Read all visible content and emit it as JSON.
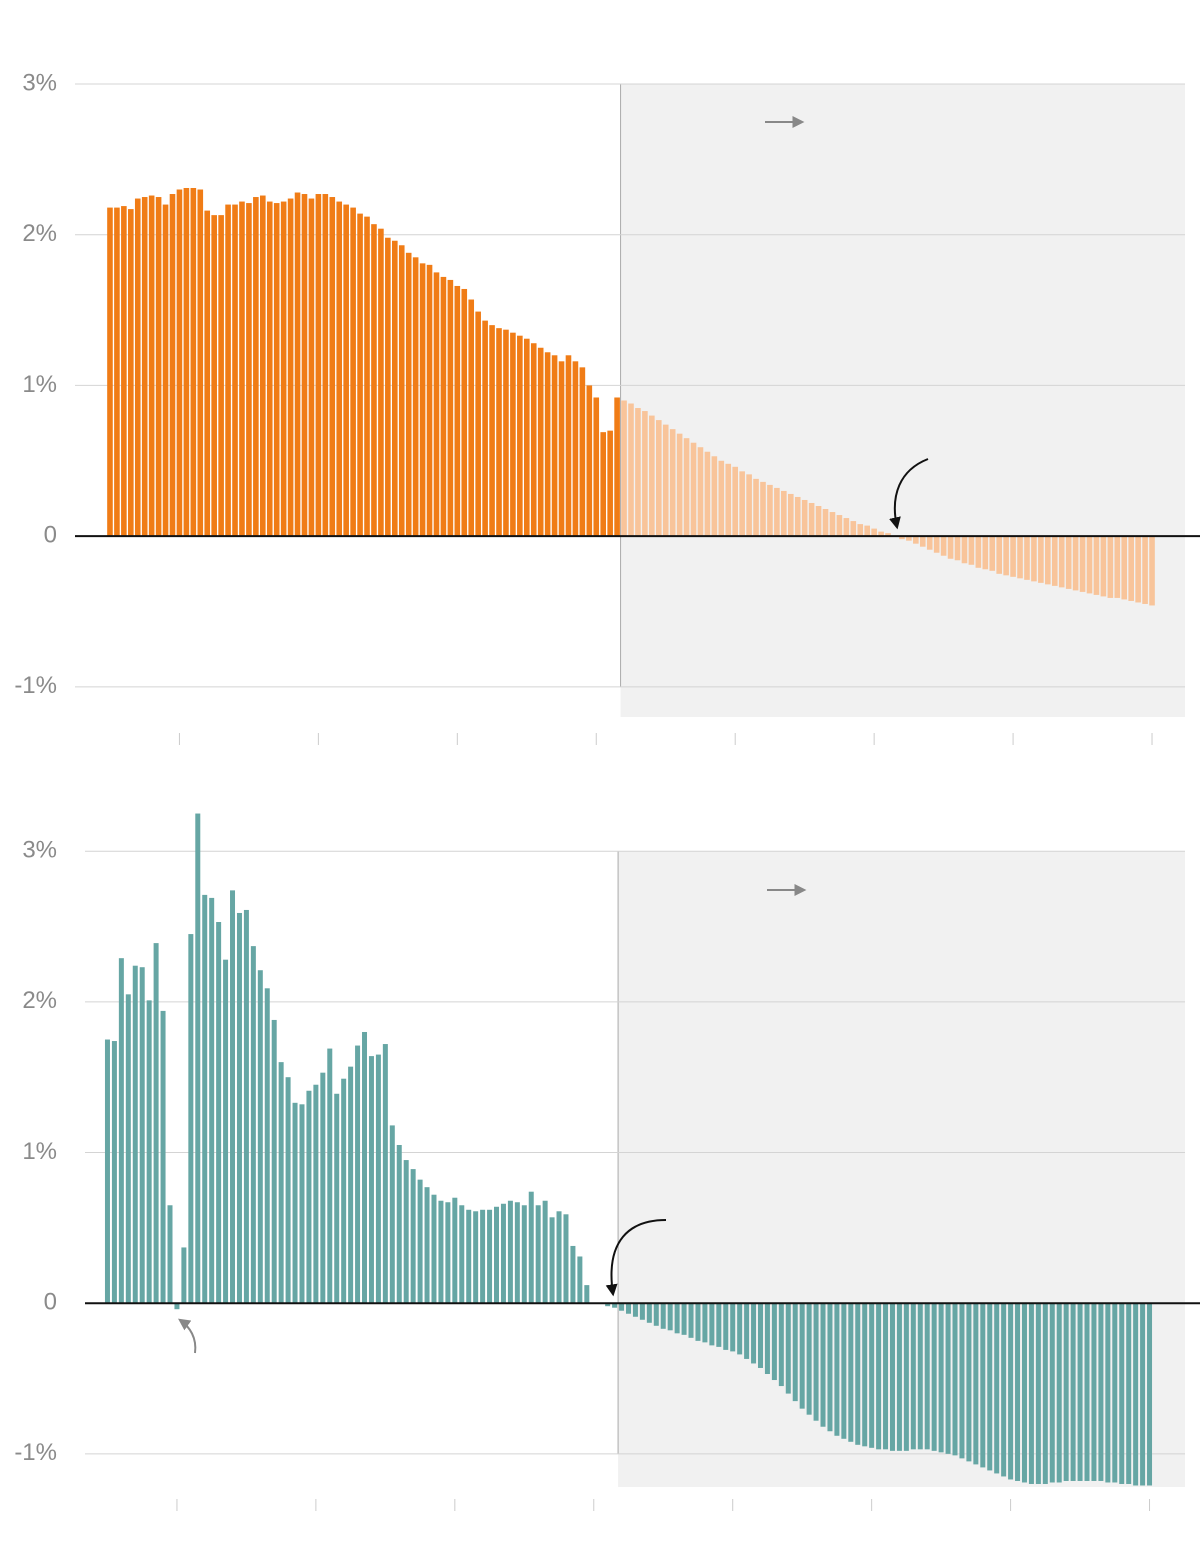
{
  "chart_data": [
    {
      "type": "bar",
      "color": "#f07c16",
      "projection_color": "#f8c49a",
      "projection_start": 2024,
      "grid": true,
      "xlim": [
        1949.5,
        2100.5
      ],
      "xticks": [
        1960,
        1980,
        2000,
        2020,
        2040,
        2060,
        2080,
        2100
      ],
      "ylim": [
        -1.2,
        3
      ],
      "yticks": [
        {
          "value": 3,
          "label": "3%"
        },
        {
          "value": 2,
          "label": "2%"
        },
        {
          "value": 1,
          "label": "1%"
        },
        0,
        {
          "value": -1,
          "label": "-1%"
        }
      ],
      "x": [
        1950,
        1951,
        1952,
        1953,
        1954,
        1955,
        1956,
        1957,
        1958,
        1959,
        1960,
        1961,
        1962,
        1963,
        1964,
        1965,
        1966,
        1967,
        1968,
        1969,
        1970,
        1971,
        1972,
        1973,
        1974,
        1975,
        1976,
        1977,
        1978,
        1979,
        1980,
        1981,
        1982,
        1983,
        1984,
        1985,
        1986,
        1987,
        1988,
        1989,
        1990,
        1991,
        1992,
        1993,
        1994,
        1995,
        1996,
        1997,
        1998,
        1999,
        2000,
        2001,
        2002,
        2003,
        2004,
        2005,
        2006,
        2007,
        2008,
        2009,
        2010,
        2011,
        2012,
        2013,
        2014,
        2015,
        2016,
        2017,
        2018,
        2019,
        2020,
        2021,
        2022,
        2023,
        2024,
        2025,
        2026,
        2027,
        2028,
        2029,
        2030,
        2031,
        2032,
        2033,
        2034,
        2035,
        2036,
        2037,
        2038,
        2039,
        2040,
        2041,
        2042,
        2043,
        2044,
        2045,
        2046,
        2047,
        2048,
        2049,
        2050,
        2051,
        2052,
        2053,
        2054,
        2055,
        2056,
        2057,
        2058,
        2059,
        2060,
        2061,
        2062,
        2063,
        2064,
        2065,
        2066,
        2067,
        2068,
        2069,
        2070,
        2071,
        2072,
        2073,
        2074,
        2075,
        2076,
        2077,
        2078,
        2079,
        2080,
        2081,
        2082,
        2083,
        2084,
        2085,
        2086,
        2087,
        2088,
        2089,
        2090,
        2091,
        2092,
        2093,
        2094,
        2095,
        2096,
        2097,
        2098,
        2099,
        2100
      ],
      "values": [
        2.18,
        2.18,
        2.19,
        2.17,
        2.24,
        2.25,
        2.26,
        2.25,
        2.2,
        2.27,
        2.3,
        2.31,
        2.31,
        2.3,
        2.16,
        2.13,
        2.13,
        2.2,
        2.2,
        2.22,
        2.21,
        2.25,
        2.26,
        2.22,
        2.21,
        2.22,
        2.24,
        2.28,
        2.27,
        2.24,
        2.27,
        2.27,
        2.25,
        2.22,
        2.2,
        2.18,
        2.14,
        2.12,
        2.07,
        2.04,
        1.98,
        1.96,
        1.93,
        1.88,
        1.85,
        1.81,
        1.8,
        1.75,
        1.72,
        1.7,
        1.66,
        1.64,
        1.57,
        1.49,
        1.43,
        1.4,
        1.38,
        1.37,
        1.35,
        1.33,
        1.31,
        1.28,
        1.25,
        1.22,
        1.2,
        1.16,
        1.2,
        1.16,
        1.12,
        1.0,
        0.92,
        0.69,
        0.7,
        0.92,
        0.9,
        0.88,
        0.85,
        0.83,
        0.8,
        0.77,
        0.74,
        0.71,
        0.68,
        0.65,
        0.62,
        0.59,
        0.56,
        0.53,
        0.5,
        0.48,
        0.46,
        0.43,
        0.41,
        0.38,
        0.36,
        0.34,
        0.32,
        0.3,
        0.28,
        0.26,
        0.24,
        0.22,
        0.2,
        0.18,
        0.16,
        0.14,
        0.12,
        0.1,
        0.08,
        0.07,
        0.05,
        0.03,
        0.02,
        0.0,
        -0.02,
        -0.03,
        -0.05,
        -0.07,
        -0.09,
        -0.11,
        -0.13,
        -0.15,
        -0.16,
        -0.18,
        -0.19,
        -0.21,
        -0.22,
        -0.23,
        -0.25,
        -0.26,
        -0.27,
        -0.28,
        -0.29,
        -0.3,
        -0.31,
        -0.32,
        -0.33,
        -0.34,
        -0.35,
        -0.36,
        -0.37,
        -0.38,
        -0.39,
        -0.4,
        -0.41,
        -0.41,
        -0.42,
        -0.43,
        -0.44,
        -0.45,
        -0.46
      ]
    },
    {
      "type": "bar",
      "color": "#66a6a4",
      "projection_color": "#66a6a4",
      "projection_start": 2024,
      "grid": true,
      "xlim": [
        1949.5,
        2100.5
      ],
      "xticks": [
        1960,
        1980,
        2000,
        2020,
        2040,
        2060,
        2080,
        2100
      ],
      "ylim": [
        -1.22,
        3.3
      ],
      "yticks": [
        {
          "value": 3,
          "label": "3%"
        },
        {
          "value": 2,
          "label": "2%"
        },
        {
          "value": 1,
          "label": "1%"
        },
        0,
        {
          "value": -1,
          "label": "-1%"
        }
      ],
      "x": [
        1950,
        1951,
        1952,
        1953,
        1954,
        1955,
        1956,
        1957,
        1958,
        1959,
        1960,
        1961,
        1962,
        1963,
        1964,
        1965,
        1966,
        1967,
        1968,
        1969,
        1970,
        1971,
        1972,
        1973,
        1974,
        1975,
        1976,
        1977,
        1978,
        1979,
        1980,
        1981,
        1982,
        1983,
        1984,
        1985,
        1986,
        1987,
        1988,
        1989,
        1990,
        1991,
        1992,
        1993,
        1994,
        1995,
        1996,
        1997,
        1998,
        1999,
        2000,
        2001,
        2002,
        2003,
        2004,
        2005,
        2006,
        2007,
        2008,
        2009,
        2010,
        2011,
        2012,
        2013,
        2014,
        2015,
        2016,
        2017,
        2018,
        2019,
        2020,
        2021,
        2022,
        2023,
        2024,
        2025,
        2026,
        2027,
        2028,
        2029,
        2030,
        2031,
        2032,
        2033,
        2034,
        2035,
        2036,
        2037,
        2038,
        2039,
        2040,
        2041,
        2042,
        2043,
        2044,
        2045,
        2046,
        2047,
        2048,
        2049,
        2050,
        2051,
        2052,
        2053,
        2054,
        2055,
        2056,
        2057,
        2058,
        2059,
        2060,
        2061,
        2062,
        2063,
        2064,
        2065,
        2066,
        2067,
        2068,
        2069,
        2070,
        2071,
        2072,
        2073,
        2074,
        2075,
        2076,
        2077,
        2078,
        2079,
        2080,
        2081,
        2082,
        2083,
        2084,
        2085,
        2086,
        2087,
        2088,
        2089,
        2090,
        2091,
        2092,
        2093,
        2094,
        2095,
        2096,
        2097,
        2098,
        2099,
        2100
      ],
      "values": [
        1.75,
        1.74,
        2.29,
        2.05,
        2.24,
        2.23,
        2.01,
        2.39,
        1.94,
        0.65,
        -0.04,
        0.37,
        2.45,
        3.25,
        2.71,
        2.69,
        2.53,
        2.28,
        2.74,
        2.59,
        2.61,
        2.37,
        2.21,
        2.09,
        1.88,
        1.6,
        1.5,
        1.33,
        1.32,
        1.41,
        1.45,
        1.53,
        1.69,
        1.39,
        1.49,
        1.57,
        1.71,
        1.8,
        1.64,
        1.65,
        1.72,
        1.18,
        1.05,
        0.95,
        0.89,
        0.82,
        0.77,
        0.72,
        0.68,
        0.67,
        0.7,
        0.65,
        0.62,
        0.61,
        0.62,
        0.62,
        0.64,
        0.66,
        0.68,
        0.67,
        0.65,
        0.74,
        0.65,
        0.68,
        0.57,
        0.61,
        0.59,
        0.38,
        0.31,
        0.12,
        0.0,
        0.0,
        -0.02,
        -0.03,
        -0.05,
        -0.07,
        -0.09,
        -0.11,
        -0.13,
        -0.15,
        -0.17,
        -0.18,
        -0.2,
        -0.21,
        -0.23,
        -0.25,
        -0.26,
        -0.28,
        -0.29,
        -0.31,
        -0.32,
        -0.34,
        -0.37,
        -0.4,
        -0.43,
        -0.47,
        -0.51,
        -0.55,
        -0.6,
        -0.65,
        -0.7,
        -0.74,
        -0.78,
        -0.82,
        -0.85,
        -0.88,
        -0.9,
        -0.92,
        -0.94,
        -0.95,
        -0.96,
        -0.97,
        -0.97,
        -0.98,
        -0.98,
        -0.98,
        -0.97,
        -0.97,
        -0.97,
        -0.98,
        -0.99,
        -1.0,
        -1.01,
        -1.03,
        -1.05,
        -1.07,
        -1.09,
        -1.11,
        -1.13,
        -1.15,
        -1.17,
        -1.18,
        -1.19,
        -1.2,
        -1.2,
        -1.2,
        -1.19,
        -1.19,
        -1.18,
        -1.18,
        -1.18,
        -1.18,
        -1.18,
        -1.18,
        -1.19,
        -1.19,
        -1.2,
        -1.2,
        -1.21,
        -1.21,
        -1.21
      ]
    }
  ]
}
